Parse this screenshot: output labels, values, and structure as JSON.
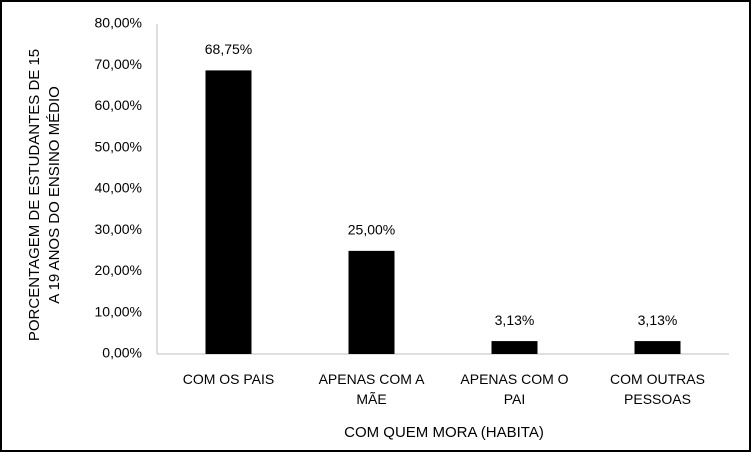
{
  "chart_data": {
    "type": "bar",
    "x_label": "COM QUEM MORA (HABITA)",
    "y_label": "PORCENTAGEM DE ESTUDANTES DE 15 A 19 ANOS DO ENSINO MÉDIO",
    "categories": [
      "COM OS PAIS",
      "APENAS COM A MÃE",
      "APENAS COM O PAI",
      "COM OUTRAS PESSOAS"
    ],
    "values": [
      68.75,
      25,
      3.13,
      3.13
    ],
    "value_labels": [
      "68,75%",
      "25,00%",
      "3,13%",
      "3,13%"
    ],
    "color": "#000000",
    "ylim": [
      0,
      80
    ],
    "yticks": [
      {
        "value": 0,
        "label": "0,00%"
      },
      {
        "value": 10,
        "label": "10,00%"
      },
      {
        "value": 20,
        "label": "20,00%"
      },
      {
        "value": 30,
        "label": "30,00%"
      },
      {
        "value": 40,
        "label": "40,00%"
      },
      {
        "value": 50,
        "label": "50,00%"
      },
      {
        "value": 60,
        "label": "60,00%"
      },
      {
        "value": 70,
        "label": "70,00%"
      },
      {
        "value": 80,
        "label": "80,00%"
      }
    ],
    "grid": false
  }
}
